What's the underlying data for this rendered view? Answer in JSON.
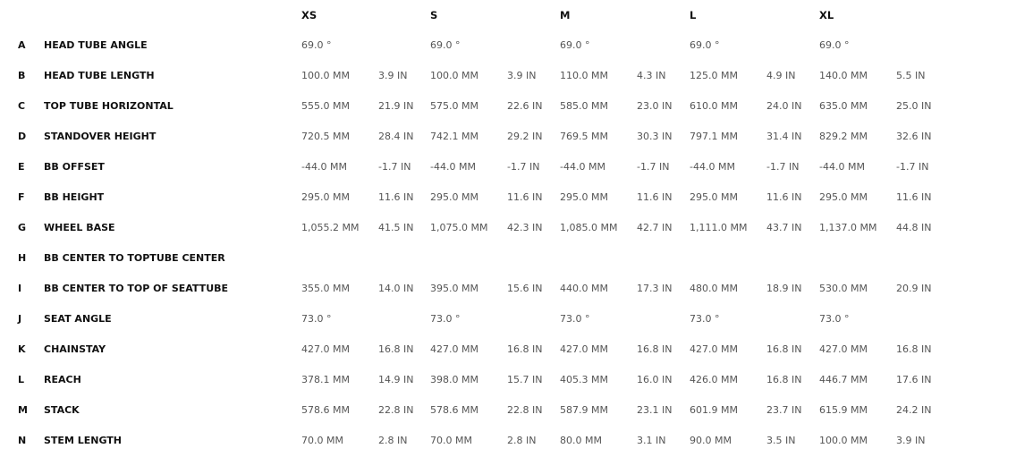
{
  "sizes": [
    "XS",
    "S",
    "M",
    "L",
    "XL"
  ],
  "rows": [
    {
      "letter": "A",
      "label": "HEAD TUBE ANGLE",
      "values": [
        [
          "69.0 °",
          ""
        ],
        [
          "69.0 °",
          ""
        ],
        [
          "69.0 °",
          ""
        ],
        [
          "69.0 °",
          ""
        ],
        [
          "69.0 °",
          ""
        ]
      ]
    },
    {
      "letter": "B",
      "label": "HEAD TUBE LENGTH",
      "values": [
        [
          "100.0 MM",
          "3.9 IN"
        ],
        [
          "100.0 MM",
          "3.9 IN"
        ],
        [
          "110.0 MM",
          "4.3 IN"
        ],
        [
          "125.0 MM",
          "4.9 IN"
        ],
        [
          "140.0 MM",
          "5.5 IN"
        ]
      ]
    },
    {
      "letter": "C",
      "label": "TOP TUBE HORIZONTAL",
      "values": [
        [
          "555.0 MM",
          "21.9 IN"
        ],
        [
          "575.0 MM",
          "22.6 IN"
        ],
        [
          "585.0 MM",
          "23.0 IN"
        ],
        [
          "610.0 MM",
          "24.0 IN"
        ],
        [
          "635.0 MM",
          "25.0 IN"
        ]
      ]
    },
    {
      "letter": "D",
      "label": "STANDOVER HEIGHT",
      "values": [
        [
          "720.5 MM",
          "28.4 IN"
        ],
        [
          "742.1 MM",
          "29.2 IN"
        ],
        [
          "769.5 MM",
          "30.3 IN"
        ],
        [
          "797.1 MM",
          "31.4 IN"
        ],
        [
          "829.2 MM",
          "32.6 IN"
        ]
      ]
    },
    {
      "letter": "E",
      "label": "BB OFFSET",
      "values": [
        [
          "-44.0 MM",
          "-1.7 IN"
        ],
        [
          "-44.0 MM",
          "-1.7 IN"
        ],
        [
          "-44.0 MM",
          "-1.7 IN"
        ],
        [
          "-44.0 MM",
          "-1.7 IN"
        ],
        [
          "-44.0 MM",
          "-1.7 IN"
        ]
      ]
    },
    {
      "letter": "F",
      "label": "BB HEIGHT",
      "values": [
        [
          "295.0 MM",
          "11.6 IN"
        ],
        [
          "295.0 MM",
          "11.6 IN"
        ],
        [
          "295.0 MM",
          "11.6 IN"
        ],
        [
          "295.0 MM",
          "11.6 IN"
        ],
        [
          "295.0 MM",
          "11.6 IN"
        ]
      ]
    },
    {
      "letter": "G",
      "label": "WHEEL BASE",
      "values": [
        [
          "1,055.2 MM",
          "41.5 IN"
        ],
        [
          "1,075.0 MM",
          "42.3 IN"
        ],
        [
          "1,085.0 MM",
          "42.7 IN"
        ],
        [
          "1,111.0 MM",
          "43.7 IN"
        ],
        [
          "1,137.0 MM",
          "44.8 IN"
        ]
      ]
    },
    {
      "letter": "H",
      "label": "BB CENTER TO TOPTUBE CENTER",
      "values": [
        [
          "",
          ""
        ],
        [
          "",
          ""
        ],
        [
          "",
          ""
        ],
        [
          "",
          ""
        ],
        [
          "",
          ""
        ]
      ]
    },
    {
      "letter": "I",
      "label": "BB CENTER TO TOP OF SEATTUBE",
      "values": [
        [
          "355.0 MM",
          "14.0 IN"
        ],
        [
          "395.0 MM",
          "15.6 IN"
        ],
        [
          "440.0 MM",
          "17.3 IN"
        ],
        [
          "480.0 MM",
          "18.9 IN"
        ],
        [
          "530.0 MM",
          "20.9 IN"
        ]
      ]
    },
    {
      "letter": "J",
      "label": "SEAT ANGLE",
      "values": [
        [
          "73.0 °",
          ""
        ],
        [
          "73.0 °",
          ""
        ],
        [
          "73.0 °",
          ""
        ],
        [
          "73.0 °",
          ""
        ],
        [
          "73.0 °",
          ""
        ]
      ]
    },
    {
      "letter": "K",
      "label": "CHAINSTAY",
      "values": [
        [
          "427.0 MM",
          "16.8 IN"
        ],
        [
          "427.0 MM",
          "16.8 IN"
        ],
        [
          "427.0 MM",
          "16.8 IN"
        ],
        [
          "427.0 MM",
          "16.8 IN"
        ],
        [
          "427.0 MM",
          "16.8 IN"
        ]
      ]
    },
    {
      "letter": "L",
      "label": "REACH",
      "values": [
        [
          "378.1 MM",
          "14.9 IN"
        ],
        [
          "398.0 MM",
          "15.7 IN"
        ],
        [
          "405.3 MM",
          "16.0 IN"
        ],
        [
          "426.0 MM",
          "16.8 IN"
        ],
        [
          "446.7 MM",
          "17.6 IN"
        ]
      ]
    },
    {
      "letter": "M",
      "label": "STACK",
      "values": [
        [
          "578.6 MM",
          "22.8 IN"
        ],
        [
          "578.6 MM",
          "22.8 IN"
        ],
        [
          "587.9 MM",
          "23.1 IN"
        ],
        [
          "601.9 MM",
          "23.7 IN"
        ],
        [
          "615.9 MM",
          "24.2 IN"
        ]
      ]
    },
    {
      "letter": "N",
      "label": "STEM LENGTH",
      "values": [
        [
          "70.0 MM",
          "2.8 IN"
        ],
        [
          "70.0 MM",
          "2.8 IN"
        ],
        [
          "80.0 MM",
          "3.1 IN"
        ],
        [
          "90.0 MM",
          "3.5 IN"
        ],
        [
          "100.0 MM",
          "3.9 IN"
        ]
      ]
    }
  ]
}
